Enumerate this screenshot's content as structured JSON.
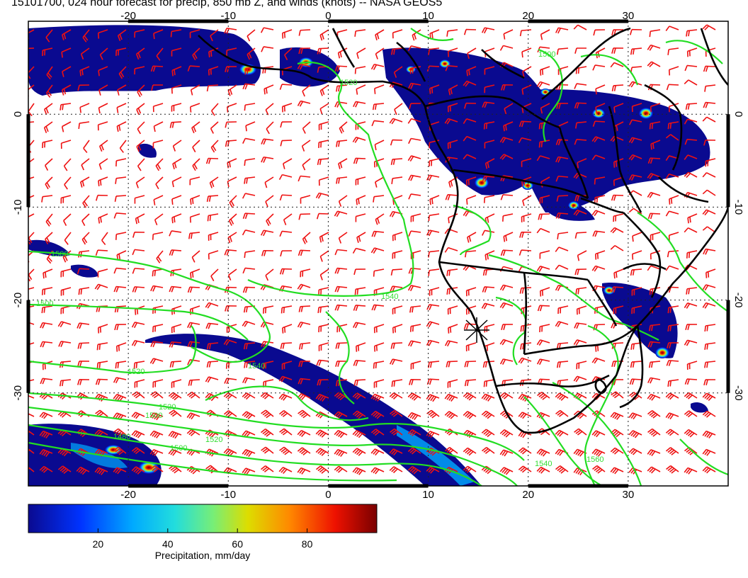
{
  "title": "15101700, 024 hour forecast for precip, 850 mb Z, and winds (knots) -- NASA GEOS5",
  "map": {
    "lon_range": [
      -30,
      40
    ],
    "lat_range": [
      -40,
      10
    ],
    "lon_ticks": [
      "-20",
      "-10",
      "0",
      "10",
      "20",
      "30"
    ],
    "lat_ticks": [
      "0",
      "-10",
      "-20",
      "-30"
    ],
    "grid_lines": "dotted",
    "contour_color": "#22dd22",
    "barb_color": "#ee1111",
    "coast_color": "#000000",
    "contour_labels": [
      "1500",
      "1520",
      "1500",
      "1540",
      "1500",
      "1520",
      "1540",
      "1520",
      "1500",
      "1480",
      "1500",
      "1520",
      "1540",
      "1560"
    ],
    "marker": "x-marker-icon"
  },
  "colorbar": {
    "label": "Precipitation, mm/day",
    "ticks": [
      "20",
      "40",
      "60",
      "80"
    ],
    "range": [
      0,
      100
    ],
    "colors": [
      "#0a0a90",
      "#0033ff",
      "#00aaff",
      "#22dddd",
      "#77ee77",
      "#dddd00",
      "#ff8800",
      "#ee1100",
      "#7a0000"
    ]
  }
}
